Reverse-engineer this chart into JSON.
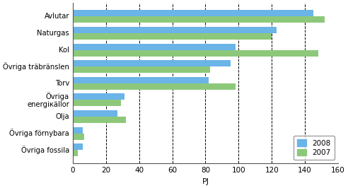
{
  "categories": [
    "Avlutar",
    "Naturgas",
    "Kol",
    "Övriga träbränslen",
    "Torv",
    "Övriga\nenergiкällor",
    "Olja",
    "Övriga förnybara",
    "Övriga fossila"
  ],
  "values_2008": [
    145,
    123,
    98,
    95,
    82,
    31,
    27,
    6,
    6
  ],
  "values_2007": [
    152,
    120,
    148,
    83,
    98,
    29,
    32,
    7,
    3
  ],
  "color_2008": "#6ab4e8",
  "color_2007": "#8dc87a",
  "xlabel": "PJ",
  "xlim": [
    0,
    160
  ],
  "xticks": [
    0,
    20,
    40,
    60,
    80,
    100,
    120,
    140,
    160
  ],
  "bar_height": 0.38,
  "legend_labels": [
    "2008",
    "2007"
  ],
  "background_color": "#ffffff"
}
